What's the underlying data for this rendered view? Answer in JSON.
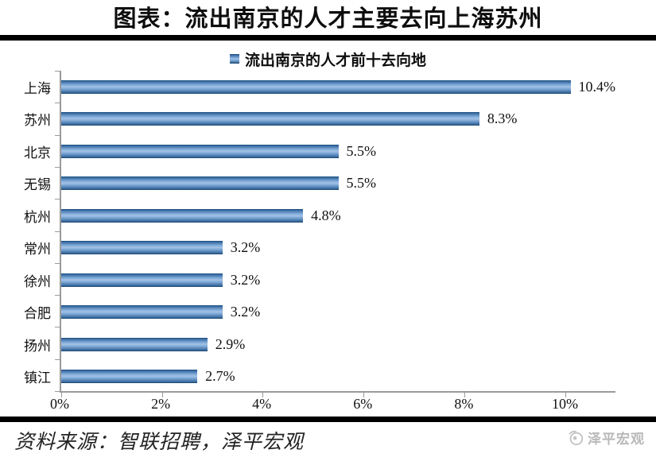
{
  "page": {
    "title": "图表：流出南京的人才主要去向上海苏州"
  },
  "legend": {
    "label": "流出南京的人才前十去向地",
    "marker_color": "#4f81bd"
  },
  "chart_data": {
    "type": "bar",
    "orientation": "horizontal",
    "title": "流出南京的人才前十去向地",
    "categories": [
      "上海",
      "苏州",
      "北京",
      "无锡",
      "杭州",
      "常州",
      "徐州",
      "合肥",
      "扬州",
      "镇江"
    ],
    "values": [
      10.4,
      8.3,
      5.5,
      5.5,
      4.8,
      3.2,
      3.2,
      3.2,
      2.9,
      2.7
    ],
    "value_labels": [
      "10.4%",
      "8.3%",
      "5.5%",
      "5.5%",
      "4.8%",
      "3.2%",
      "3.2%",
      "3.2%",
      "2.9%",
      "2.7%"
    ],
    "x_ticks": [
      "0%",
      "2%",
      "4%",
      "6%",
      "8%",
      "10%"
    ],
    "x_tick_values": [
      0,
      2,
      4,
      6,
      8,
      10
    ],
    "xlim": [
      0,
      11
    ],
    "grid": false,
    "legend_position": "top",
    "bar_color": "#6f9ecf",
    "xlabel": "",
    "ylabel": ""
  },
  "footer": {
    "source": "资料来源：智联招聘，泽平宏观",
    "logo_text": "泽平宏观"
  }
}
